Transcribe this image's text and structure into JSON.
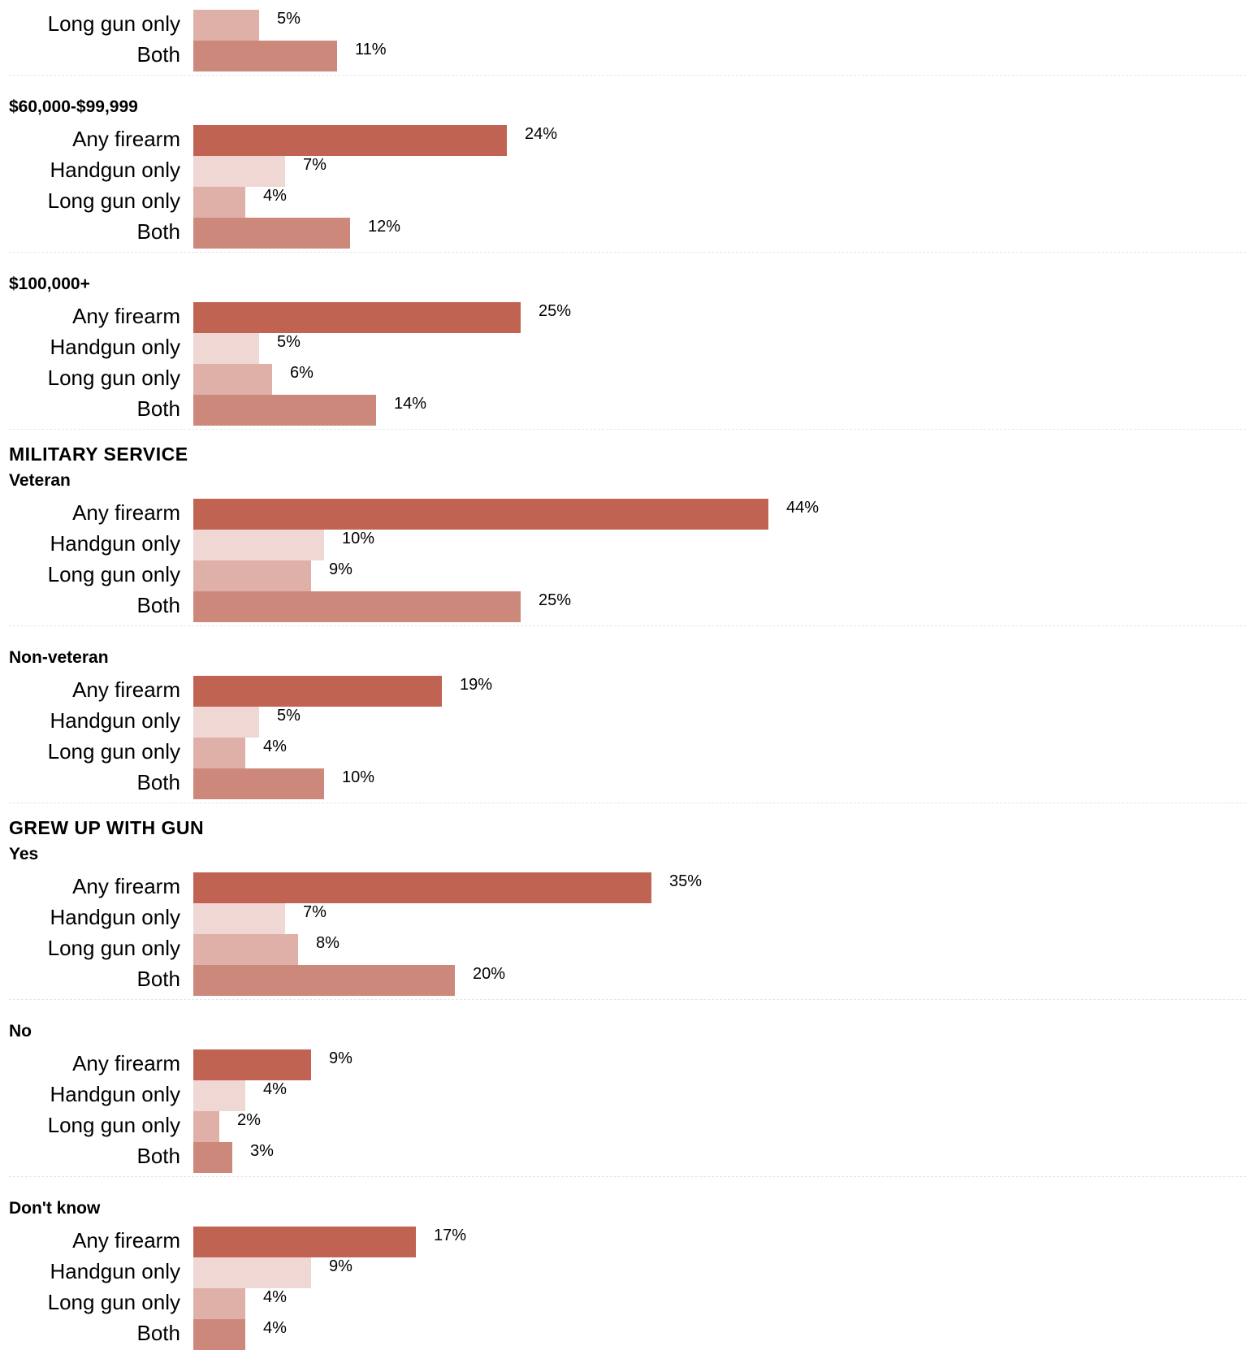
{
  "chart_data": {
    "type": "bar",
    "orientation": "horizontal",
    "categories": [
      "Any firearm",
      "Handgun only",
      "Long gun only",
      "Both"
    ],
    "colors": {
      "Any firearm": "#c06352",
      "Handgun only": "#efd7d3",
      "Long gun only": "#dfb0a8",
      "Both": "#cd887c"
    },
    "xlim": [
      0,
      44
    ],
    "blocks": [
      {
        "section": null,
        "group": null,
        "rows": [
          {
            "label": "Long gun only",
            "value": 5,
            "display": "5%"
          },
          {
            "label": "Both",
            "value": 11,
            "display": "11%"
          }
        ]
      },
      {
        "section": null,
        "group": "$60,000-$99,999",
        "rows": [
          {
            "label": "Any firearm",
            "value": 24,
            "display": "24%"
          },
          {
            "label": "Handgun only",
            "value": 7,
            "display": "7%"
          },
          {
            "label": "Long gun only",
            "value": 4,
            "display": "4%"
          },
          {
            "label": "Both",
            "value": 12,
            "display": "12%"
          }
        ]
      },
      {
        "section": null,
        "group": "$100,000+",
        "rows": [
          {
            "label": "Any firearm",
            "value": 25,
            "display": "25%"
          },
          {
            "label": "Handgun only",
            "value": 5,
            "display": "5%"
          },
          {
            "label": "Long gun only",
            "value": 6,
            "display": "6%"
          },
          {
            "label": "Both",
            "value": 14,
            "display": "14%"
          }
        ]
      },
      {
        "section": "MILITARY SERVICE",
        "group": "Veteran",
        "rows": [
          {
            "label": "Any firearm",
            "value": 44,
            "display": "44%"
          },
          {
            "label": "Handgun only",
            "value": 10,
            "display": "10%"
          },
          {
            "label": "Long gun only",
            "value": 9,
            "display": "9%"
          },
          {
            "label": "Both",
            "value": 25,
            "display": "25%"
          }
        ]
      },
      {
        "section": null,
        "group": "Non-veteran",
        "rows": [
          {
            "label": "Any firearm",
            "value": 19,
            "display": "19%"
          },
          {
            "label": "Handgun only",
            "value": 5,
            "display": "5%"
          },
          {
            "label": "Long gun only",
            "value": 4,
            "display": "4%"
          },
          {
            "label": "Both",
            "value": 10,
            "display": "10%"
          }
        ]
      },
      {
        "section": "GREW UP WITH GUN",
        "group": "Yes",
        "rows": [
          {
            "label": "Any firearm",
            "value": 35,
            "display": "35%"
          },
          {
            "label": "Handgun only",
            "value": 7,
            "display": "7%"
          },
          {
            "label": "Long gun only",
            "value": 8,
            "display": "8%"
          },
          {
            "label": "Both",
            "value": 20,
            "display": "20%"
          }
        ]
      },
      {
        "section": null,
        "group": "No",
        "rows": [
          {
            "label": "Any firearm",
            "value": 9,
            "display": "9%"
          },
          {
            "label": "Handgun only",
            "value": 4,
            "display": "4%"
          },
          {
            "label": "Long gun only",
            "value": 2,
            "display": "2%"
          },
          {
            "label": "Both",
            "value": 3,
            "display": "3%"
          }
        ]
      },
      {
        "section": null,
        "group": "Don't know",
        "rows": [
          {
            "label": "Any firearm",
            "value": 17,
            "display": "17%"
          },
          {
            "label": "Handgun only",
            "value": 9,
            "display": "9%"
          },
          {
            "label": "Long gun only",
            "value": 4,
            "display": "4%"
          },
          {
            "label": "Both",
            "value": 4,
            "display": "4%"
          }
        ]
      }
    ]
  }
}
